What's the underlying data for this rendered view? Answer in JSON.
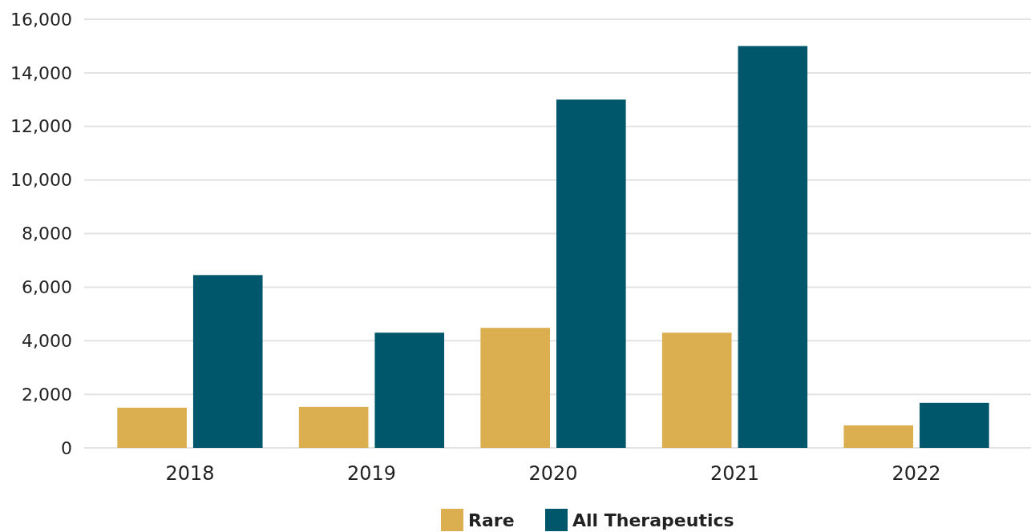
{
  "chart_data": {
    "type": "bar",
    "categories": [
      "2018",
      "2019",
      "2020",
      "2021",
      "2022"
    ],
    "series": [
      {
        "name": "Rare",
        "color": "#dbaf50",
        "values": [
          1500,
          1530,
          4480,
          4300,
          840
        ]
      },
      {
        "name": "All Therapeutics",
        "color": "#00566a",
        "values": [
          6450,
          4300,
          13000,
          15000,
          1680
        ]
      }
    ],
    "ylim": [
      0,
      16000
    ],
    "yticks": [
      {
        "value": 0,
        "label": "0"
      },
      {
        "value": 2000,
        "label": "2,000"
      },
      {
        "value": 4000,
        "label": "4,000"
      },
      {
        "value": 6000,
        "label": "6,000"
      },
      {
        "value": 8000,
        "label": "8,000"
      },
      {
        "value": 10000,
        "label": "10,000"
      },
      {
        "value": 12000,
        "label": "12,000"
      },
      {
        "value": 14000,
        "label": "14,000"
      },
      {
        "value": 16000,
        "label": "16,000"
      }
    ],
    "grid": "y",
    "legend": "bottom"
  }
}
